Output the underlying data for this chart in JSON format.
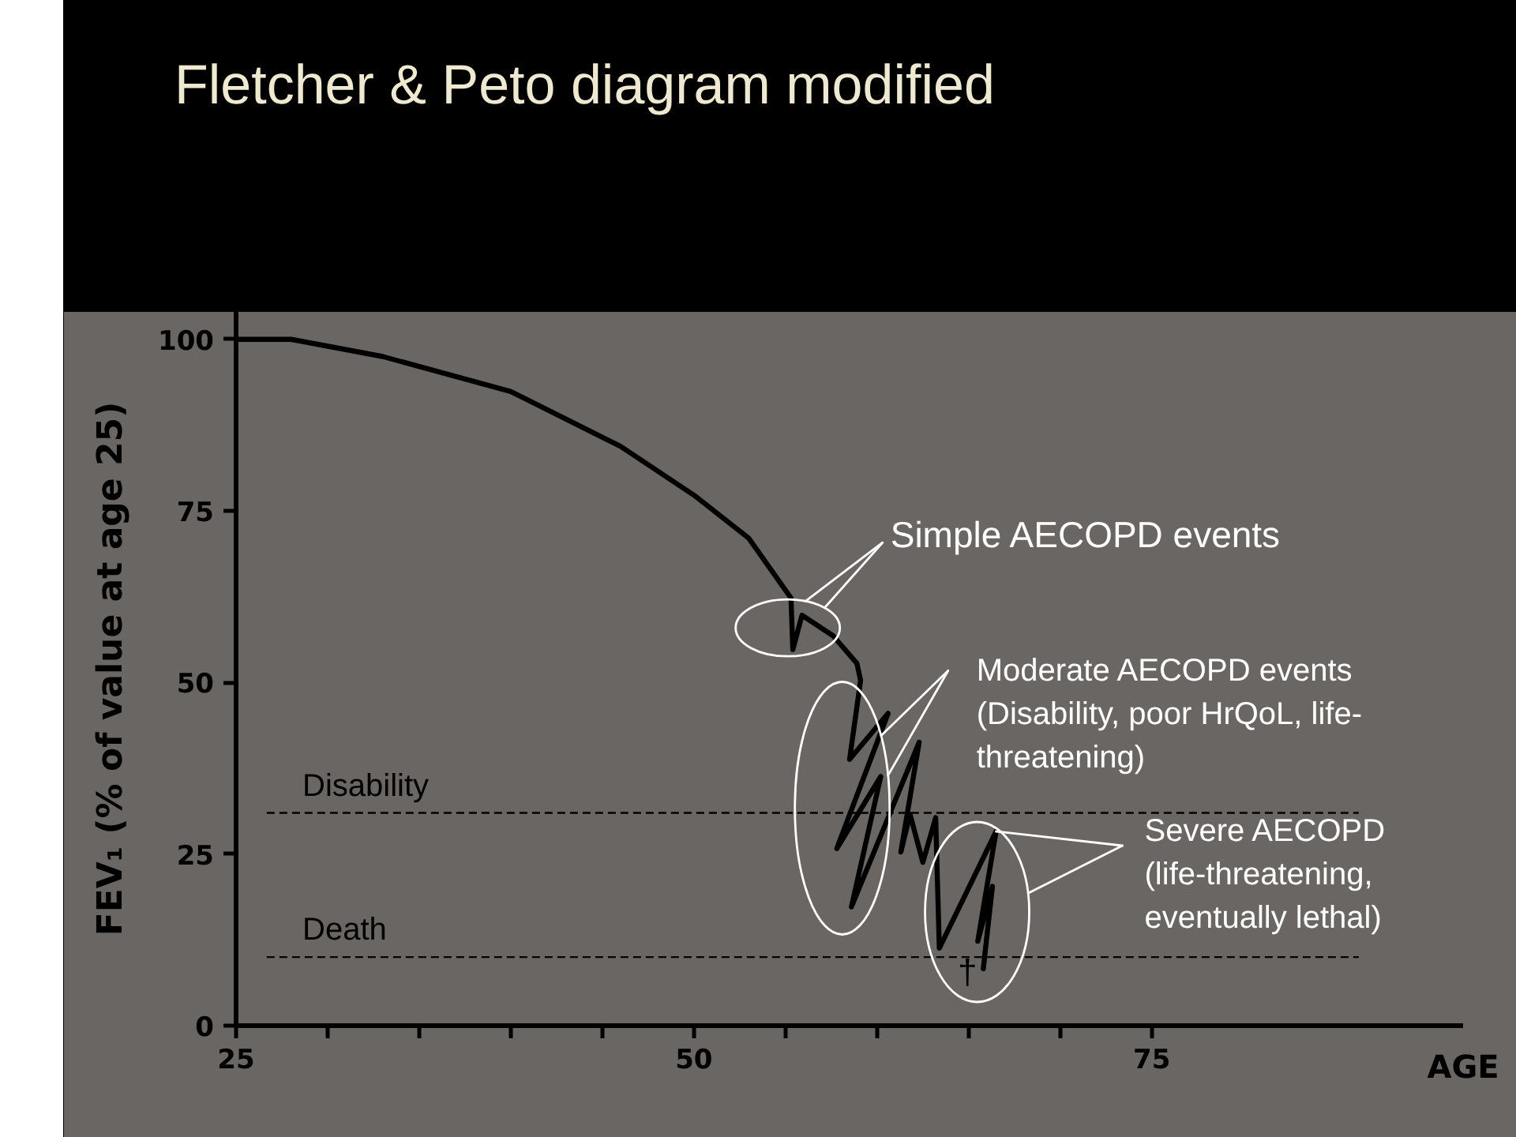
{
  "chart_data": {
    "type": "line",
    "title": "Fletcher & Peto diagram  modified",
    "xlabel": "AGE",
    "ylabel": "FEV₁ (% of value at age 25)",
    "series": [
      {
        "color": "#000000",
        "x": [
          25,
          28,
          33,
          40,
          46,
          50,
          53,
          55.3,
          55.4,
          55.9,
          57.6,
          58.9,
          59.1,
          58.5,
          60.6,
          57.8,
          60.2,
          58.6,
          62.3,
          61.3,
          61.8,
          62.5,
          63.2,
          63.4,
          66.5,
          65.5,
          66.3,
          65.8
        ],
        "values": [
          100,
          100,
          97.5,
          92.4,
          84.4,
          77.3,
          71,
          62.3,
          54.8,
          59.8,
          56.8,
          52.8,
          50.3,
          38.8,
          45.5,
          25.8,
          36.3,
          17.3,
          41.3,
          25.3,
          30.8,
          23.8,
          30.3,
          11.3,
          28.3,
          12.3,
          20.3,
          8.3
        ]
      }
    ],
    "xlim": [
      25,
      92
    ],
    "ylim": [
      0,
      104
    ],
    "xticks": [
      25,
      {
        "value": 30,
        "label": null
      },
      {
        "value": 35,
        "label": null
      },
      {
        "value": 40,
        "label": null
      },
      {
        "value": 45,
        "label": null
      },
      50,
      {
        "value": 55,
        "label": null
      },
      {
        "value": 60,
        "label": null
      },
      {
        "value": 65,
        "label": null
      },
      {
        "value": 70,
        "label": null
      },
      75
    ],
    "yticks": [
      0,
      25,
      50,
      75,
      100
    ],
    "ref_lines": [
      {
        "axis": "y",
        "value": 31,
        "label": "Disability",
        "color": "#000000",
        "line_style": "dashed"
      },
      {
        "axis": "y",
        "value": 10,
        "label": "Death",
        "color": "#000000",
        "line_style": "dashed"
      }
    ],
    "annotations": [
      {
        "text": "Simple AECOPD events",
        "x": 55.9,
        "y": 59.8
      },
      {
        "text": "Moderate AECOPD events\n(Disability, poor HrQoL, life-\nthreatening)",
        "x": 60.6,
        "y": 45.5
      },
      {
        "text": "Severe AECOPD\n(life-threatening,\neventually lethal)",
        "x": 66.5,
        "y": 28.3
      },
      {
        "text": "†",
        "x": 65.8,
        "y": 8.3
      }
    ]
  }
}
